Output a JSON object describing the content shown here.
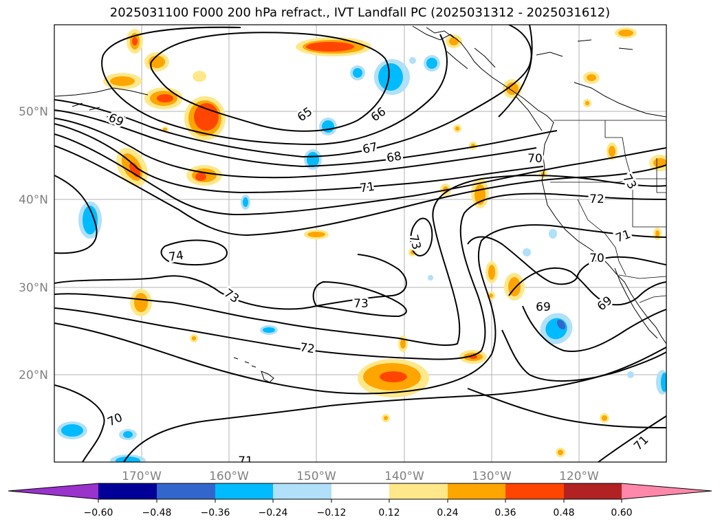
{
  "title": "2025031100 F000 200 hPa refract., IVT Landfall PC (2025031312 - 2025031612)",
  "map": {
    "lat_labels": [
      "50°N",
      "40°N",
      "30°N",
      "20°N"
    ],
    "lon_labels": [
      "170°W",
      "160°W",
      "150°W",
      "140°W",
      "130°W",
      "120°W"
    ],
    "contour_labels": [
      "65",
      "66",
      "67",
      "68",
      "69",
      "70",
      "71",
      "72",
      "73",
      "74",
      "73",
      "73",
      "72",
      "70",
      "71",
      "69",
      "69",
      "70",
      "71",
      "73",
      "71"
    ]
  },
  "colorbar": {
    "tick_labels": [
      "−0.60",
      "−0.48",
      "−0.36",
      "−0.24",
      "−0.12",
      "0.12",
      "0.24",
      "0.36",
      "0.48",
      "0.60"
    ],
    "colors": [
      "#9933cc",
      "#000099",
      "#3366cc",
      "#00bbff",
      "#b0e0fa",
      "#ffffff",
      "#ffe88a",
      "#ffa500",
      "#ff4500",
      "#b22222",
      "#ff88aa"
    ]
  }
}
